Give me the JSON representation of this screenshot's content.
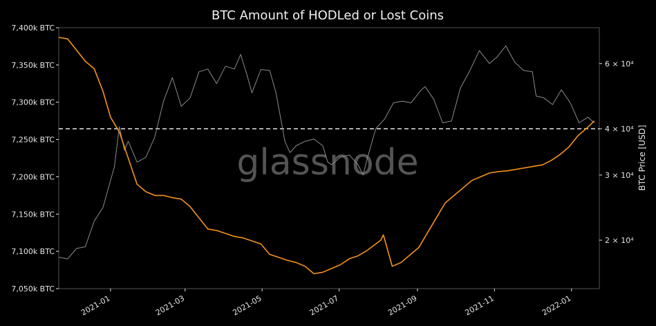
{
  "chart_data": {
    "type": "line",
    "title": "BTC Amount of HODLed or Lost Coins",
    "watermark": "glassnode",
    "xlabel": "",
    "ylabel": "",
    "y2label": "BTC Price [USD]",
    "x_tick_labels": [
      "2021-01",
      "2021-03",
      "2021-05",
      "2021-07",
      "2021-09",
      "2021-11",
      "2022-01"
    ],
    "x_tick_dates": [
      "2021-01-01",
      "2021-03-01",
      "2021-05-01",
      "2021-07-01",
      "2021-09-01",
      "2021-11-01",
      "2022-01-01"
    ],
    "xlim": [
      "2020-11-21",
      "2022-01-23"
    ],
    "y_left": {
      "ylim": [
        7050,
        7400
      ],
      "tick_values": [
        7050,
        7100,
        7150,
        7200,
        7250,
        7300,
        7350,
        7400
      ],
      "tick_labels": [
        "7,050k BTC",
        "7,100k BTC",
        "7,150k BTC",
        "7,200k BTC",
        "7,250k BTC",
        "7,300k BTC",
        "7,350k BTC",
        "7,400k BTC"
      ]
    },
    "y_right": {
      "scale": "log",
      "ylim": [
        14800,
        75000
      ],
      "tick_values": [
        20000,
        30000,
        40000,
        60000
      ],
      "tick_labels": [
        "2 × 10⁴",
        "3 × 10⁴",
        "4 × 10⁴",
        "6 × 10⁴"
      ]
    },
    "reference_line": {
      "axis": "right",
      "value": 40000,
      "style": "dashed",
      "color": "#e6e6e6"
    },
    "grid": false,
    "colors": {
      "hodl": "#f7931a",
      "price": "#8c8c8c",
      "background": "#000000",
      "frame": "#555555"
    },
    "series": [
      {
        "axis": "left",
        "color": "#f7931a",
        "x": [
          "2020-11-21",
          "2020-11-28",
          "2020-12-05",
          "2020-12-12",
          "2020-12-19",
          "2020-12-26",
          "2021-01-01",
          "2021-01-08",
          "2021-01-15",
          "2021-01-22",
          "2021-01-29",
          "2021-02-05",
          "2021-02-12",
          "2021-02-19",
          "2021-02-26",
          "2021-03-05",
          "2021-03-12",
          "2021-03-19",
          "2021-03-26",
          "2021-04-02",
          "2021-04-09",
          "2021-04-16",
          "2021-04-23",
          "2021-04-30",
          "2021-05-07",
          "2021-05-14",
          "2021-05-21",
          "2021-05-28",
          "2021-06-04",
          "2021-06-11",
          "2021-06-18",
          "2021-06-25",
          "2021-07-02",
          "2021-07-09",
          "2021-07-16",
          "2021-07-23",
          "2021-07-30",
          "2021-08-03",
          "2021-08-05",
          "2021-08-12",
          "2021-08-19",
          "2021-08-26",
          "2021-09-02",
          "2021-09-09",
          "2021-09-16",
          "2021-09-23",
          "2021-09-30",
          "2021-10-07",
          "2021-10-14",
          "2021-10-21",
          "2021-10-28",
          "2021-11-04",
          "2021-11-11",
          "2021-11-18",
          "2021-11-25",
          "2021-12-02",
          "2021-12-09",
          "2021-12-16",
          "2021-12-23",
          "2021-12-30",
          "2022-01-06",
          "2022-01-13",
          "2022-01-19"
        ],
        "values": [
          7387,
          7385,
          7370,
          7355,
          7345,
          7315,
          7280,
          7260,
          7225,
          7190,
          7180,
          7175,
          7175,
          7172,
          7170,
          7160,
          7145,
          7130,
          7128,
          7124,
          7120,
          7118,
          7114,
          7110,
          7096,
          7092,
          7088,
          7085,
          7080,
          7070,
          7072,
          7077,
          7082,
          7090,
          7094,
          7101,
          7110,
          7115,
          7122,
          7080,
          7085,
          7095,
          7105,
          7125,
          7145,
          7165,
          7175,
          7185,
          7195,
          7200,
          7205,
          7207,
          7208,
          7210,
          7212,
          7214,
          7216,
          7222,
          7230,
          7240,
          7255,
          7265,
          7275
        ]
      },
      {
        "axis": "right",
        "color": "#8c8c8c",
        "x": [
          "2020-11-21",
          "2020-11-28",
          "2020-12-05",
          "2020-12-12",
          "2020-12-19",
          "2020-12-26",
          "2021-01-01",
          "2021-01-04",
          "2021-01-08",
          "2021-01-12",
          "2021-01-15",
          "2021-01-22",
          "2021-01-29",
          "2021-02-05",
          "2021-02-12",
          "2021-02-19",
          "2021-02-26",
          "2021-03-05",
          "2021-03-12",
          "2021-03-19",
          "2021-03-26",
          "2021-04-02",
          "2021-04-09",
          "2021-04-14",
          "2021-04-19",
          "2021-04-23",
          "2021-04-30",
          "2021-05-07",
          "2021-05-12",
          "2021-05-19",
          "2021-05-23",
          "2021-05-28",
          "2021-06-04",
          "2021-06-11",
          "2021-06-18",
          "2021-06-22",
          "2021-06-25",
          "2021-07-02",
          "2021-07-09",
          "2021-07-16",
          "2021-07-20",
          "2021-07-23",
          "2021-07-30",
          "2021-08-06",
          "2021-08-13",
          "2021-08-20",
          "2021-08-27",
          "2021-09-03",
          "2021-09-07",
          "2021-09-14",
          "2021-09-21",
          "2021-09-28",
          "2021-10-05",
          "2021-10-12",
          "2021-10-20",
          "2021-10-28",
          "2021-11-03",
          "2021-11-10",
          "2021-11-17",
          "2021-11-24",
          "2021-12-01",
          "2021-12-04",
          "2021-12-10",
          "2021-12-17",
          "2021-12-24",
          "2021-12-31",
          "2022-01-07",
          "2022-01-14",
          "2022-01-19"
        ],
        "values": [
          18000,
          17800,
          19000,
          19200,
          22500,
          24500,
          29000,
          31500,
          40500,
          35000,
          37000,
          32500,
          33500,
          38000,
          47500,
          55000,
          46000,
          48500,
          57000,
          58000,
          53000,
          59000,
          58000,
          63500,
          56000,
          50000,
          57800,
          57500,
          50000,
          37000,
          34500,
          36000,
          37000,
          37500,
          36000,
          32500,
          32000,
          33500,
          34000,
          32000,
          30000,
          33000,
          40000,
          42500,
          47000,
          47500,
          47000,
          50500,
          52000,
          48000,
          41500,
          42000,
          51500,
          57000,
          65000,
          60000,
          62500,
          67000,
          60500,
          57500,
          57000,
          49000,
          48500,
          46500,
          51000,
          47000,
          41500,
          43000,
          41500
        ]
      }
    ]
  }
}
